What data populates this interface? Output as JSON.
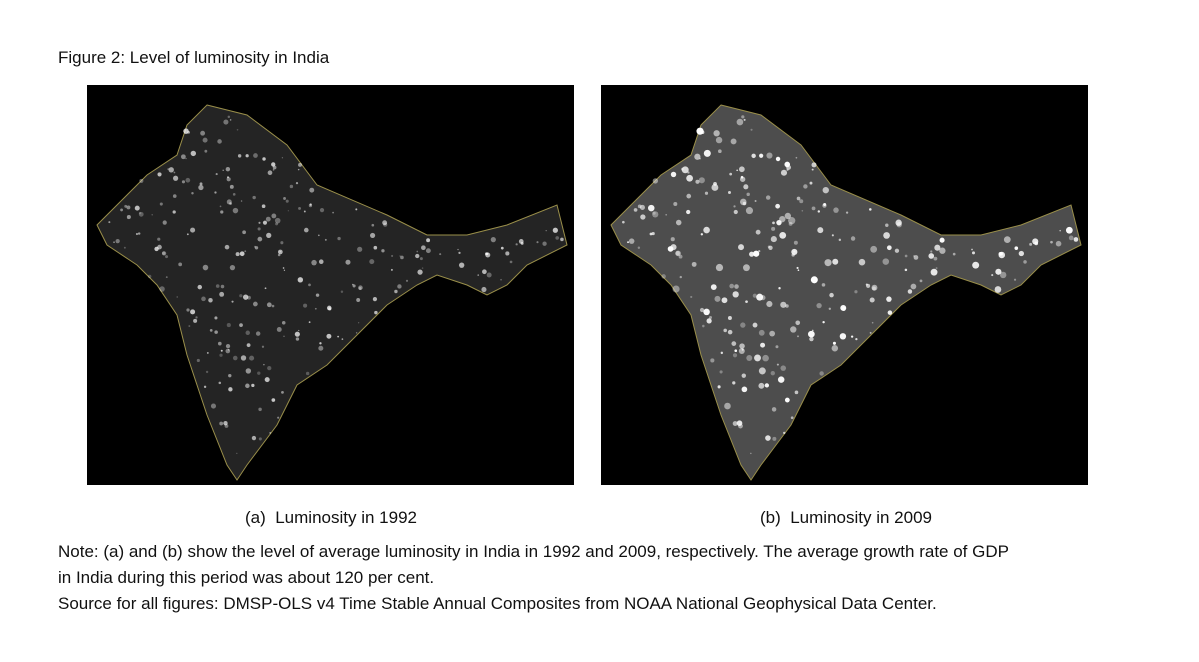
{
  "title": "Figure 2: Level of luminosity in India",
  "panels": [
    {
      "caption": "(a)  Luminosity in 1992"
    },
    {
      "caption": "(b)  Luminosity in 2009"
    }
  ],
  "note": {
    "lines": [
      "Note: (a) and (b) show the level of average luminosity in India in 1992 and 2009, respectively. The average growth rate of GDP",
      "in India during this period was about 120 per cent."
    ],
    "source": "Source for all figures: DMSP-OLS v4 Time Stable Annual Composites from NOAA National Geophysical Data Center."
  }
}
